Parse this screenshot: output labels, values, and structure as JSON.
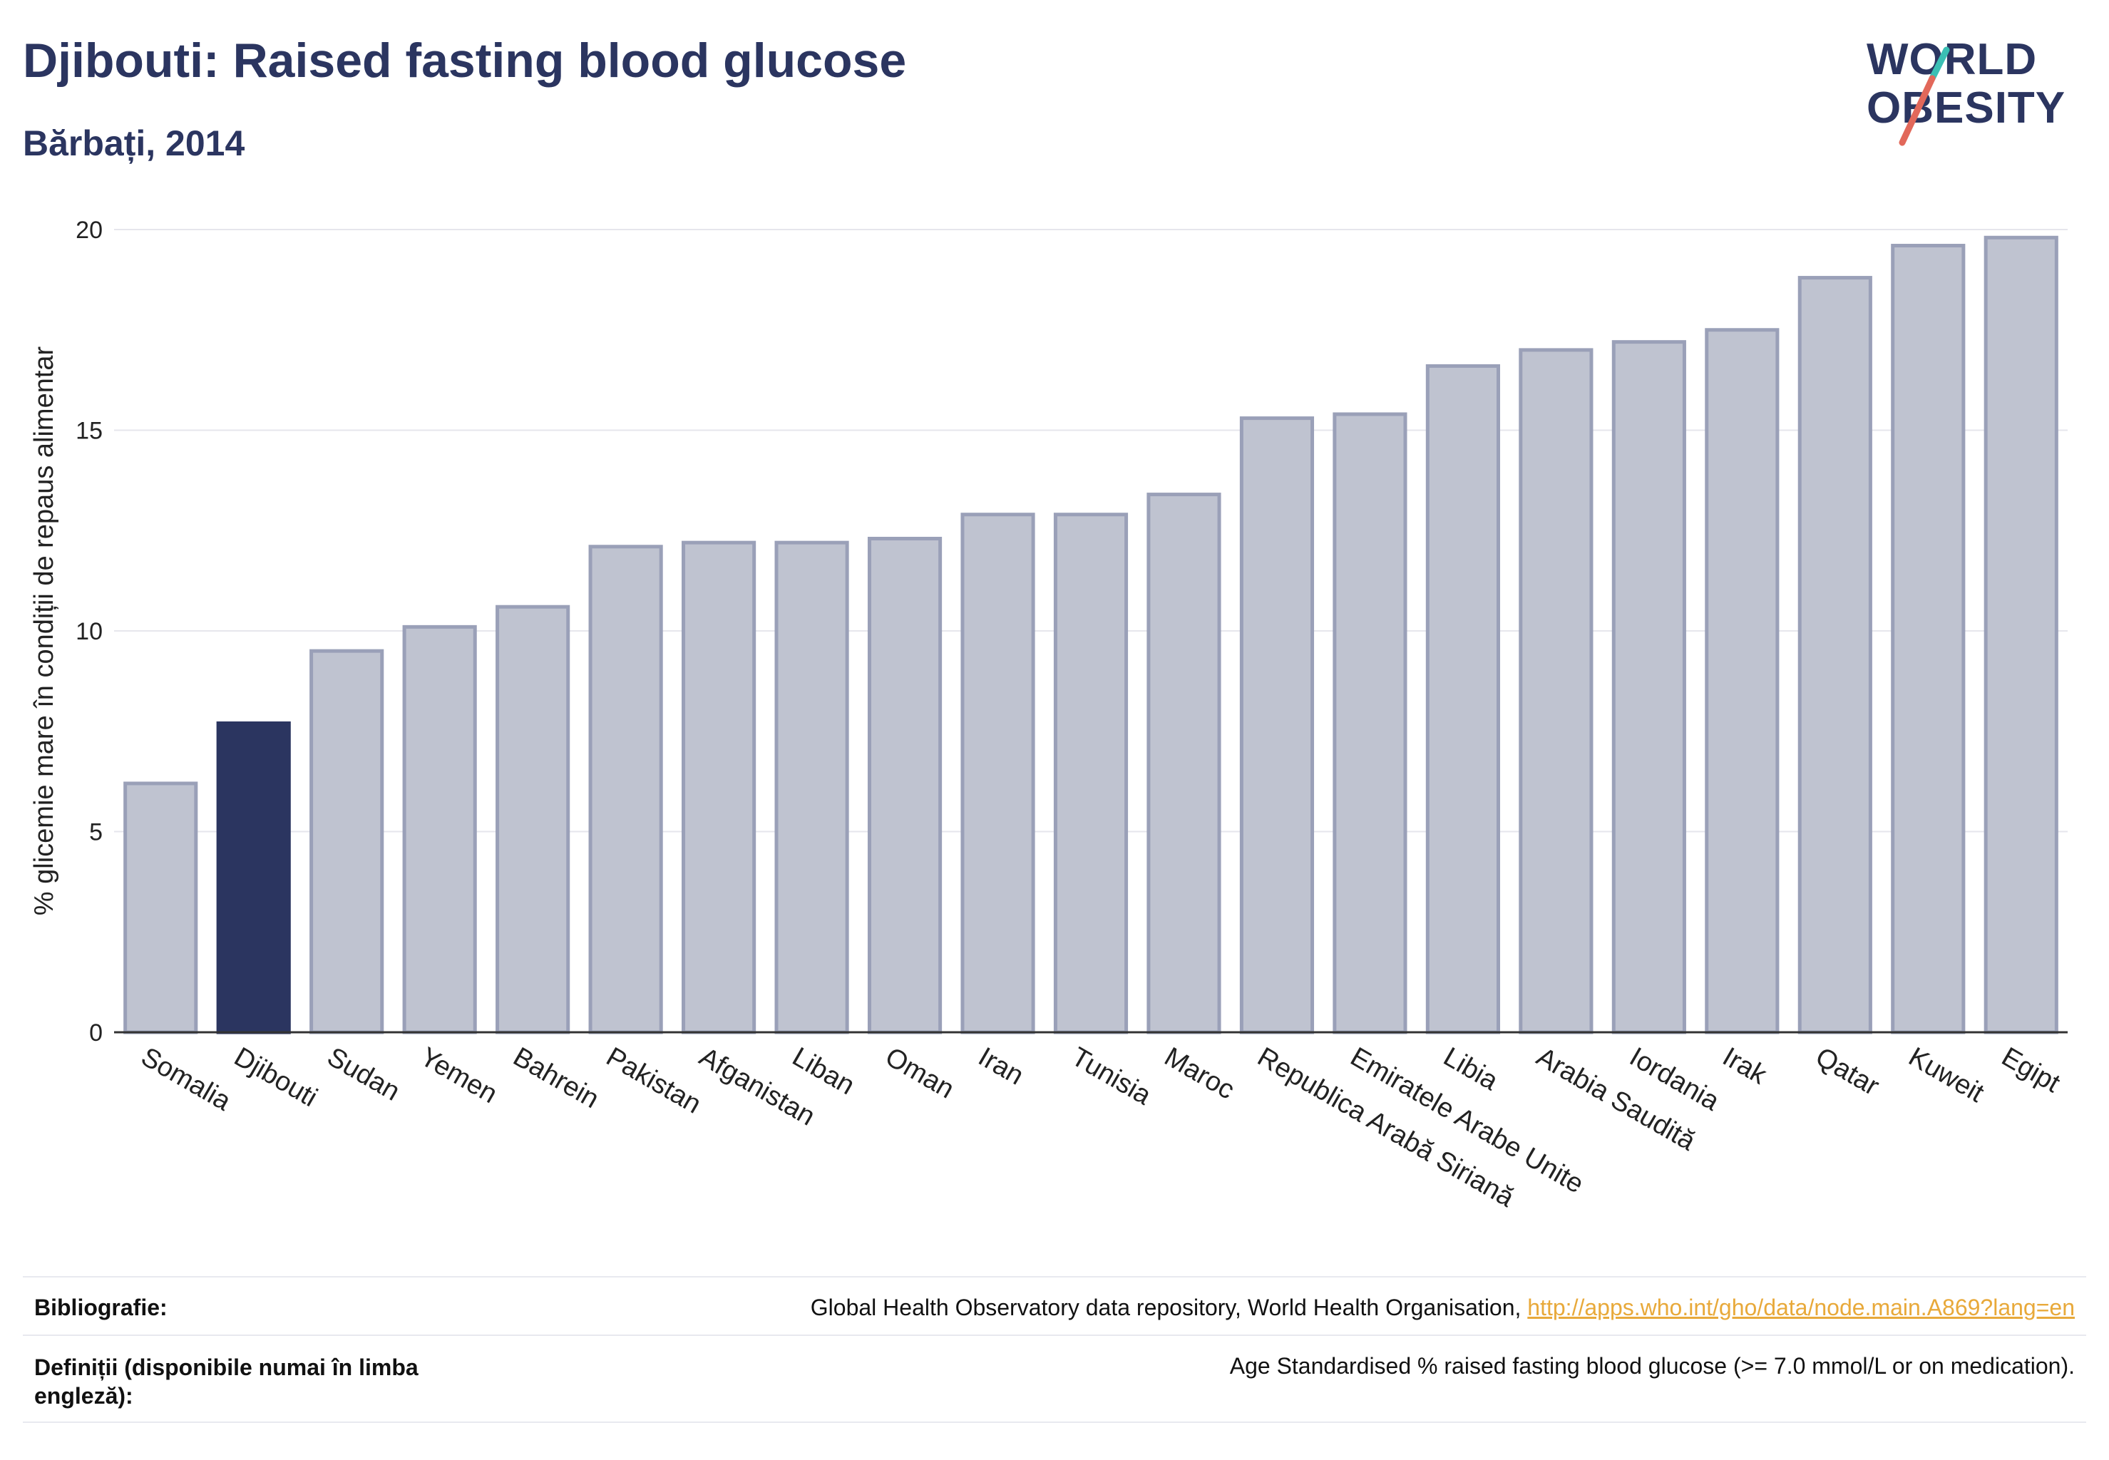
{
  "header": {
    "title": "Djibouti: Raised fasting blood glucose",
    "subtitle": "Bărbați, 2014"
  },
  "logo": {
    "line1": "WORLD",
    "line2": "OBESITY"
  },
  "colors": {
    "highlight": "#2b3560",
    "bar": "#bfc3d0",
    "bar_stroke": "#9aa0b8",
    "grid": "#e6e6ec",
    "accent_teal": "#3bbfb4",
    "accent_red": "#e2685a",
    "link": "#e8a93a"
  },
  "chart_data": {
    "type": "bar",
    "ylabel": "% glicemie mare în condiții de repaus alimentar",
    "ylim": [
      0,
      20
    ],
    "yticks": [
      "0",
      "5",
      "10",
      "15",
      "20"
    ],
    "categories": [
      "Somalia",
      "Djibouti",
      "Sudan",
      "Yemen",
      "Bahrein",
      "Pakistan",
      "Afganistan",
      "Liban",
      "Oman",
      "Iran",
      "Tunisia",
      "Maroc",
      "Republica Arabă Siriană",
      "Emiratele Arabe Unite",
      "Libia",
      "Arabia Saudită",
      "Iordania",
      "Irak",
      "Qatar",
      "Kuweit",
      "Egipt"
    ],
    "values": [
      6.2,
      7.7,
      9.5,
      10.1,
      10.6,
      12.1,
      12.2,
      12.2,
      12.3,
      12.9,
      12.9,
      13.4,
      15.3,
      15.4,
      16.6,
      17.0,
      17.2,
      17.5,
      18.8,
      19.6,
      19.8
    ],
    "highlight": "Djibouti",
    "grid": true
  },
  "footer": {
    "bibliography_label": "Bibliografie:",
    "bibliography_text": "Global Health Observatory data repository, World Health Organisation, ",
    "bibliography_link": "http://apps.who.int/gho/data/node.main.A869?lang=en",
    "definitions_label_line1": "Definiții (disponibile numai în limba",
    "definitions_label_line2": "engleză):",
    "definitions_text": "Age Standardised % raised fasting blood glucose (>= 7.0 mmol/L or on medication)."
  }
}
